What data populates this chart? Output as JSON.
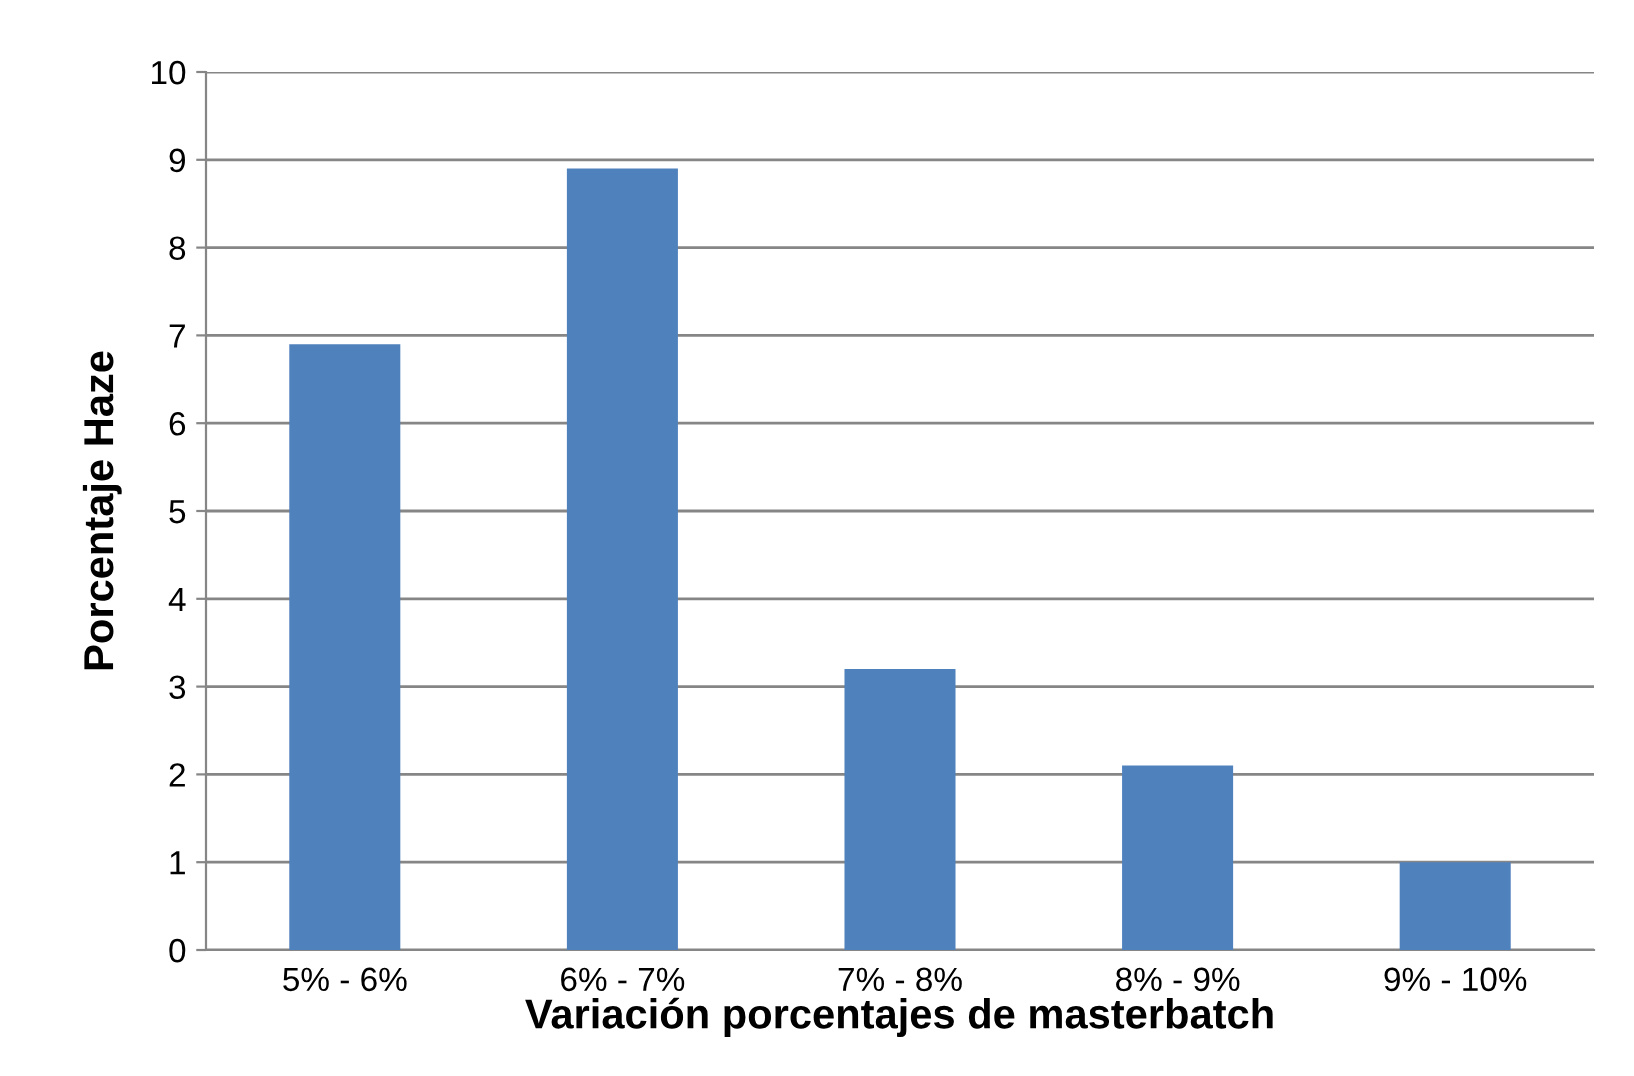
{
  "chart_data": {
    "type": "bar",
    "xlabel": "Variación porcentajes de masterbatch",
    "ylabel": "Porcentaje Haze",
    "categories": [
      "5% - 6%",
      "6% - 7%",
      "7% - 8%",
      "8% - 9%",
      "9% - 10%"
    ],
    "values": [
      6.9,
      8.9,
      3.2,
      2.1,
      1.0
    ],
    "color": "#4f81bd",
    "ylim": [
      0,
      10
    ],
    "yticks": [
      0,
      1,
      2,
      3,
      4,
      5,
      6,
      7,
      8,
      9,
      10
    ],
    "grid": "y",
    "legend": false
  }
}
